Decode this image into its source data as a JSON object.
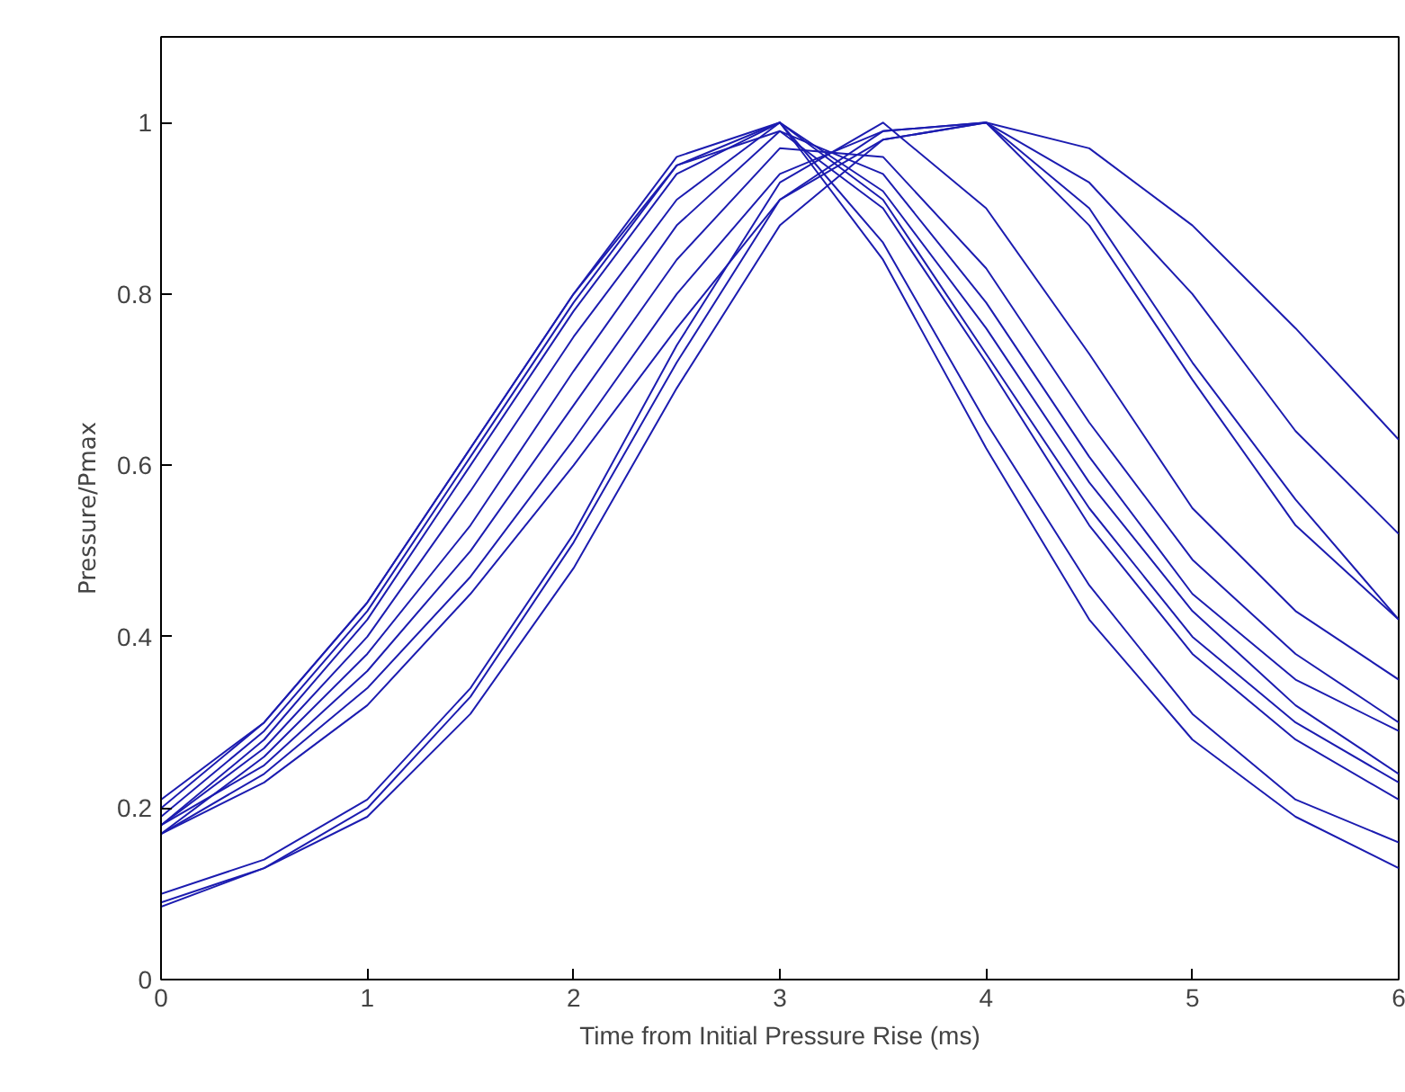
{
  "chart_data": {
    "type": "line",
    "xlabel": "Time from Initial Pressure Rise (ms)",
    "ylabel": "Pressure/Pmax",
    "x": [
      0,
      0.5,
      1,
      1.5,
      2,
      2.5,
      3,
      3.5,
      4,
      4.5,
      5,
      5.5,
      6
    ],
    "series": [
      {
        "color": "#1c1cb0",
        "values": [
          0.18,
          0.28,
          0.42,
          0.6,
          0.78,
          0.94,
          1.0,
          0.84,
          0.62,
          0.42,
          0.28,
          0.19,
          0.13
        ]
      },
      {
        "color": "#1c1cb0",
        "values": [
          0.19,
          0.29,
          0.43,
          0.61,
          0.79,
          0.95,
          1.0,
          0.86,
          0.65,
          0.46,
          0.31,
          0.21,
          0.16
        ]
      },
      {
        "color": "#1c1cb0",
        "values": [
          0.2,
          0.3,
          0.44,
          0.62,
          0.8,
          0.95,
          0.99,
          0.9,
          0.72,
          0.53,
          0.38,
          0.28,
          0.21
        ]
      },
      {
        "color": "#1c1cb0",
        "values": [
          0.21,
          0.3,
          0.44,
          0.62,
          0.8,
          0.96,
          1.0,
          0.91,
          0.73,
          0.55,
          0.4,
          0.3,
          0.23
        ]
      },
      {
        "color": "#1c1cb0",
        "values": [
          0.18,
          0.27,
          0.4,
          0.57,
          0.75,
          0.91,
          1.0,
          0.92,
          0.76,
          0.58,
          0.43,
          0.32,
          0.24
        ]
      },
      {
        "color": "#1c1cb0",
        "values": [
          0.17,
          0.26,
          0.38,
          0.53,
          0.71,
          0.88,
          0.99,
          0.94,
          0.79,
          0.61,
          0.45,
          0.35,
          0.29
        ]
      },
      {
        "color": "#1c1cb0",
        "values": [
          0.18,
          0.25,
          0.36,
          0.5,
          0.67,
          0.84,
          0.97,
          0.96,
          0.83,
          0.65,
          0.49,
          0.38,
          0.3
        ]
      },
      {
        "color": "#1c1cb0",
        "values": [
          0.1,
          0.14,
          0.21,
          0.34,
          0.52,
          0.74,
          0.93,
          1.0,
          0.9,
          0.73,
          0.55,
          0.43,
          0.35
        ]
      },
      {
        "color": "#1c1cb0",
        "values": [
          0.09,
          0.13,
          0.2,
          0.33,
          0.51,
          0.72,
          0.91,
          0.99,
          1.0,
          0.88,
          0.7,
          0.53,
          0.42
        ]
      },
      {
        "color": "#1c1cb0",
        "values": [
          0.085,
          0.13,
          0.19,
          0.31,
          0.48,
          0.69,
          0.88,
          0.98,
          1.0,
          0.9,
          0.72,
          0.56,
          0.42
        ]
      },
      {
        "color": "#1c1cb0",
        "values": [
          0.17,
          0.24,
          0.34,
          0.47,
          0.63,
          0.8,
          0.94,
          0.99,
          1.0,
          0.93,
          0.8,
          0.64,
          0.52
        ]
      },
      {
        "color": "#1c1cb0",
        "values": [
          0.17,
          0.23,
          0.32,
          0.45,
          0.6,
          0.76,
          0.91,
          0.98,
          1.0,
          0.97,
          0.88,
          0.76,
          0.63
        ]
      }
    ],
    "xlim": [
      0,
      6
    ],
    "ylim": [
      0,
      1.1
    ],
    "xticks": [
      0,
      1,
      2,
      3,
      4,
      5,
      6
    ],
    "yticks": [
      0,
      0.2,
      0.4,
      0.6,
      0.8,
      1
    ],
    "grid": false,
    "marker": "none",
    "line_style": "solid"
  }
}
